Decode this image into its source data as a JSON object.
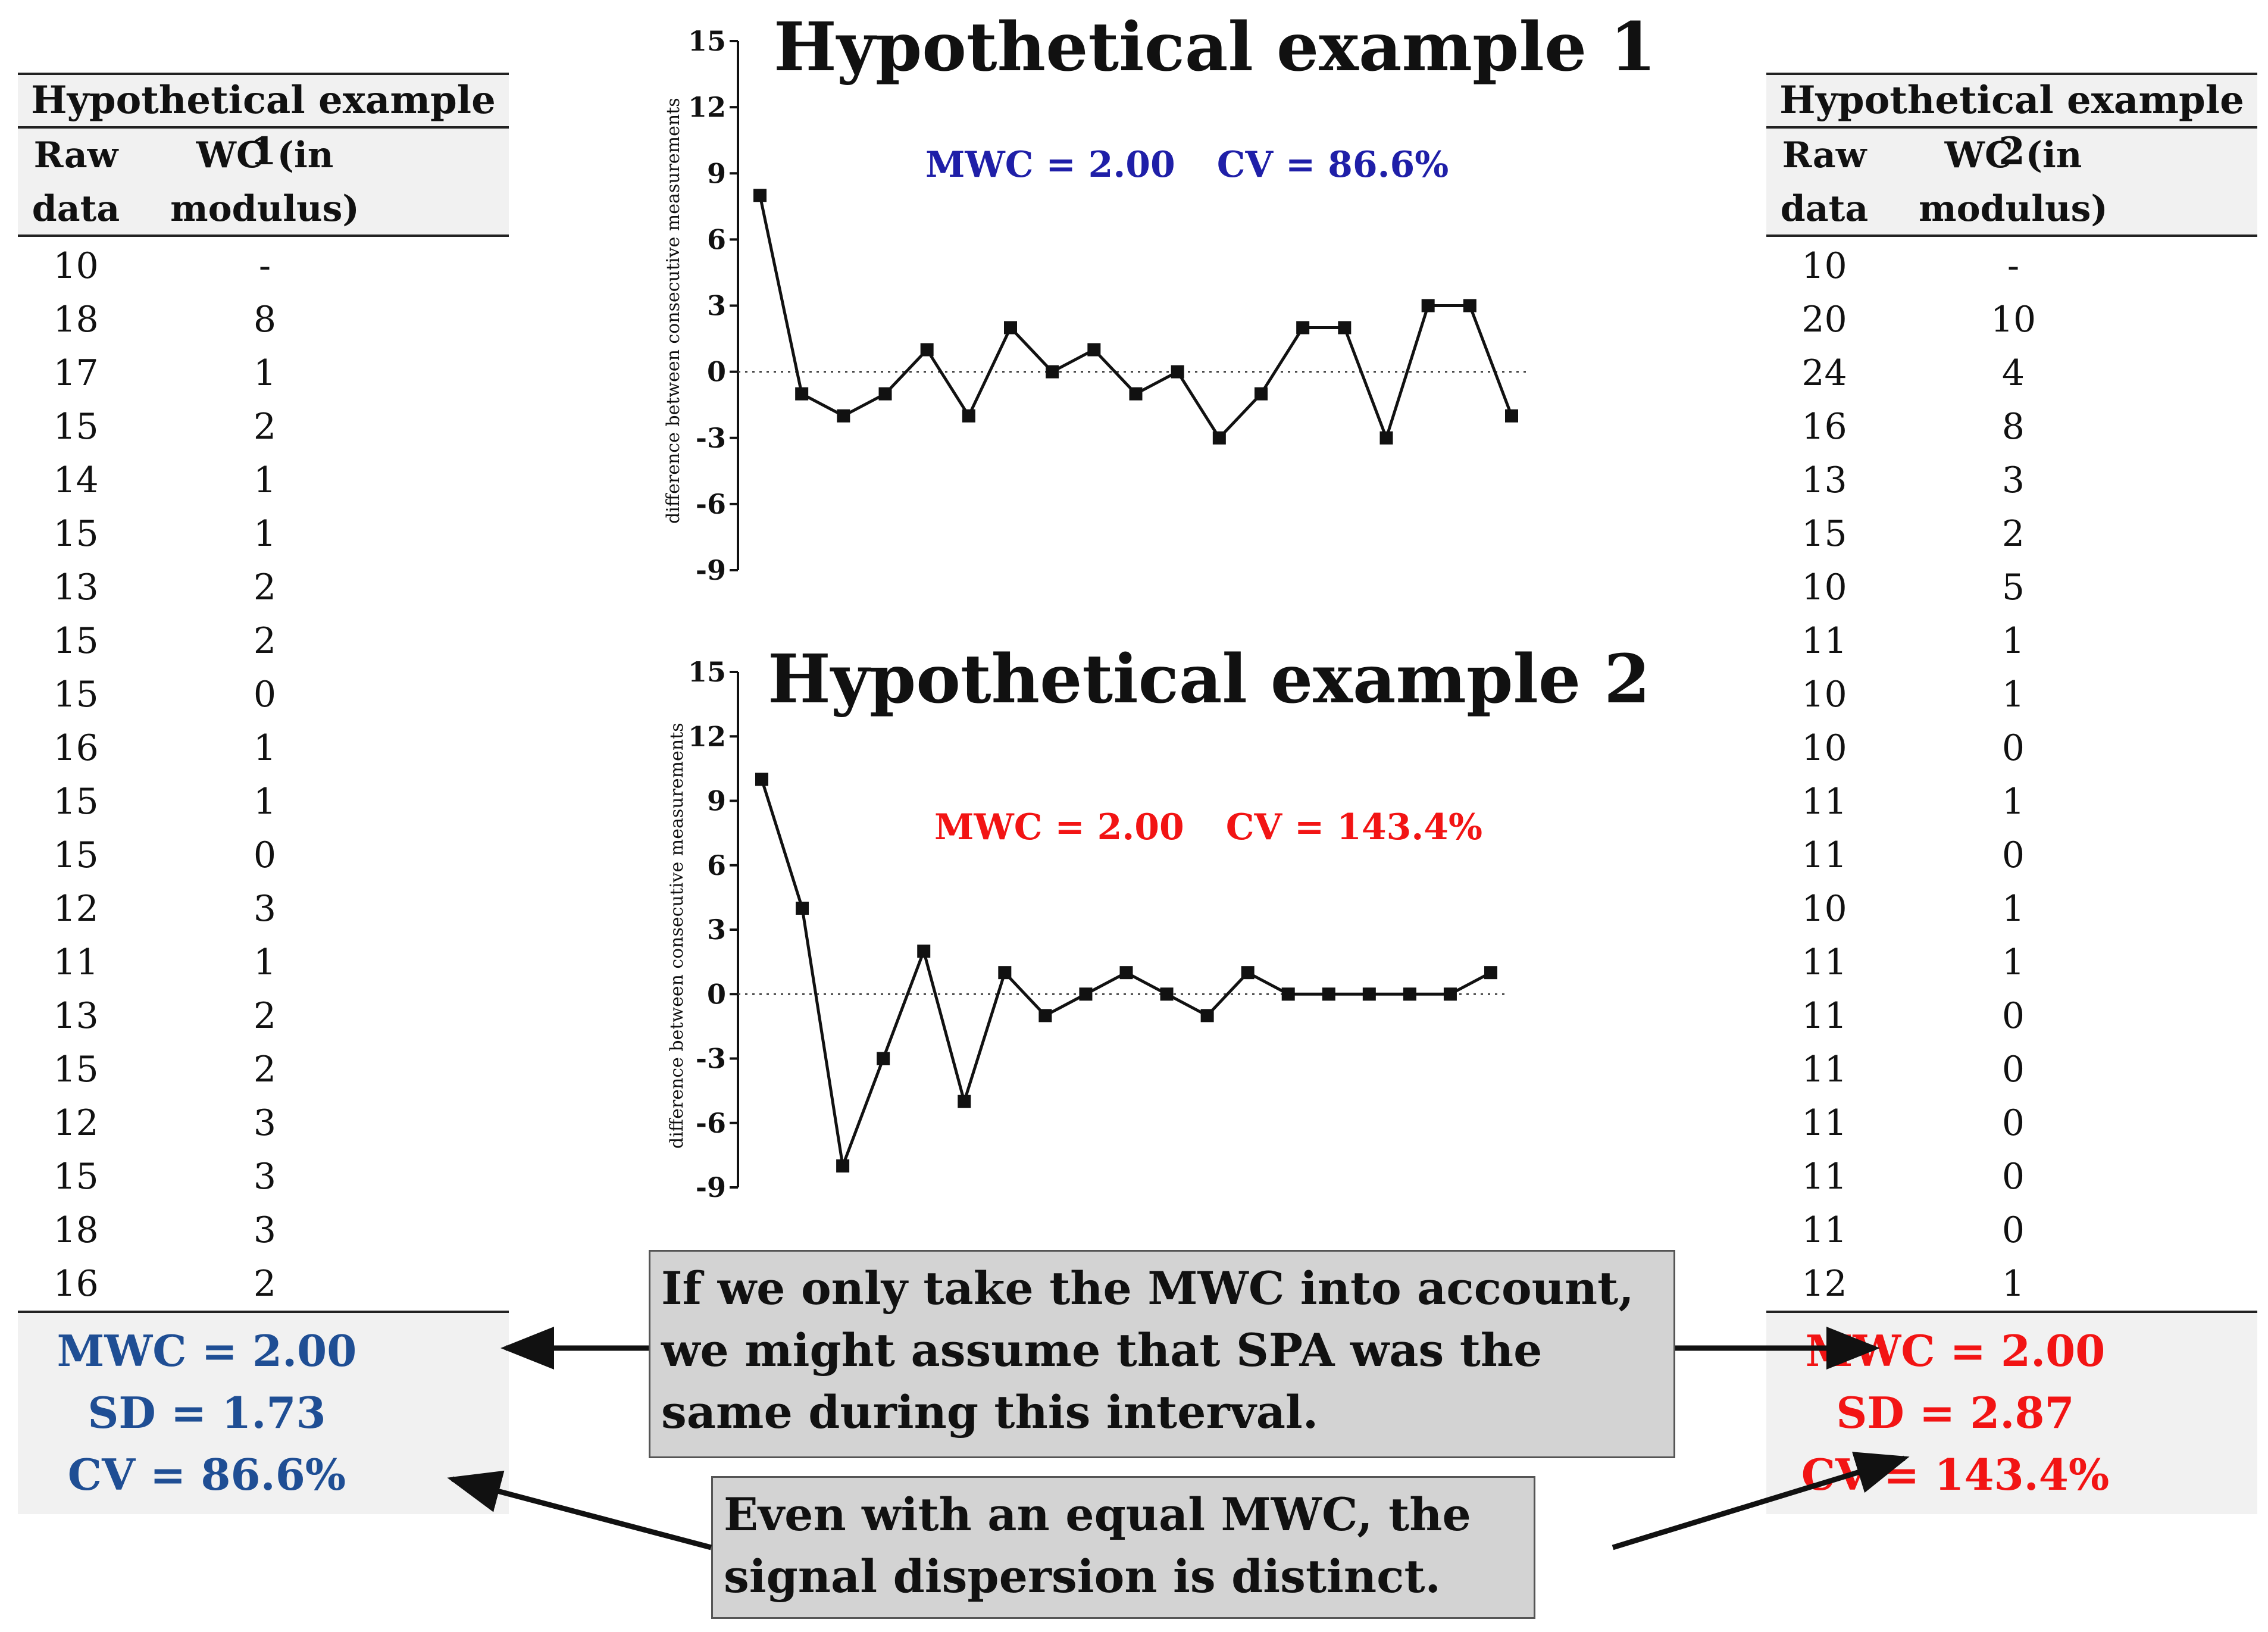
{
  "left_table": {
    "title": "Hypothetical example 1",
    "col_raw": "Raw data",
    "col_wc": "WC (in modulus)",
    "rows": [
      {
        "raw": "10",
        "wc": "-"
      },
      {
        "raw": "18",
        "wc": "8"
      },
      {
        "raw": "17",
        "wc": "1"
      },
      {
        "raw": "15",
        "wc": "2"
      },
      {
        "raw": "14",
        "wc": "1"
      },
      {
        "raw": "15",
        "wc": "1"
      },
      {
        "raw": "13",
        "wc": "2"
      },
      {
        "raw": "15",
        "wc": "2"
      },
      {
        "raw": "15",
        "wc": "0"
      },
      {
        "raw": "16",
        "wc": "1"
      },
      {
        "raw": "15",
        "wc": "1"
      },
      {
        "raw": "15",
        "wc": "0"
      },
      {
        "raw": "12",
        "wc": "3"
      },
      {
        "raw": "11",
        "wc": "1"
      },
      {
        "raw": "13",
        "wc": "2"
      },
      {
        "raw": "15",
        "wc": "2"
      },
      {
        "raw": "12",
        "wc": "3"
      },
      {
        "raw": "15",
        "wc": "3"
      },
      {
        "raw": "18",
        "wc": "3"
      },
      {
        "raw": "16",
        "wc": "2"
      }
    ],
    "mwc": "MWC = 2.00",
    "sd": "SD = 1.73",
    "cv": "CV = 86.6%",
    "color": "#1f4e94"
  },
  "right_table": {
    "title": "Hypothetical example 2",
    "col_raw": "Raw data",
    "col_wc": "WC (in modulus)",
    "rows": [
      {
        "raw": "10",
        "wc": "-"
      },
      {
        "raw": "20",
        "wc": "10"
      },
      {
        "raw": "24",
        "wc": "4"
      },
      {
        "raw": "16",
        "wc": "8"
      },
      {
        "raw": "13",
        "wc": "3"
      },
      {
        "raw": "15",
        "wc": "2"
      },
      {
        "raw": "10",
        "wc": "5"
      },
      {
        "raw": "11",
        "wc": "1"
      },
      {
        "raw": "10",
        "wc": "1"
      },
      {
        "raw": "10",
        "wc": "0"
      },
      {
        "raw": "11",
        "wc": "1"
      },
      {
        "raw": "11",
        "wc": "0"
      },
      {
        "raw": "10",
        "wc": "1"
      },
      {
        "raw": "11",
        "wc": "1"
      },
      {
        "raw": "11",
        "wc": "0"
      },
      {
        "raw": "11",
        "wc": "0"
      },
      {
        "raw": "11",
        "wc": "0"
      },
      {
        "raw": "11",
        "wc": "0"
      },
      {
        "raw": "11",
        "wc": "0"
      },
      {
        "raw": "12",
        "wc": "1"
      }
    ],
    "mwc": "MWC = 2.00",
    "sd": "SD = 2.87",
    "cv": "CV = 143.4%",
    "color": "#f21414"
  },
  "chart_data": [
    {
      "type": "line",
      "title": "Hypothetical example 1",
      "ylabel": "difference between consecutive measurements",
      "xlabel": "",
      "ylim": [
        -9,
        15
      ],
      "yticks": [
        15,
        12,
        9,
        6,
        3,
        0,
        -3,
        -6,
        -9
      ],
      "annotations": [
        "MWC = 2.00",
        "CV = 86.6%"
      ],
      "annotation_color": "#1f1fa8",
      "reference_line_y": 0,
      "values": [
        8,
        -1,
        -2,
        -1,
        1,
        -2,
        2,
        0,
        1,
        -1,
        0,
        -3,
        -1,
        2,
        2,
        -3,
        3,
        3,
        -2
      ]
    },
    {
      "type": "line",
      "title": "Hypothetical example 2",
      "ylabel": "difference between consecutive measurements",
      "xlabel": "",
      "ylim": [
        -9,
        15
      ],
      "yticks": [
        15,
        12,
        9,
        6,
        3,
        0,
        -3,
        -6,
        -9
      ],
      "annotations": [
        "MWC = 2.00",
        "CV = 143.4%"
      ],
      "annotation_color": "#f21414",
      "reference_line_y": 0,
      "values": [
        10,
        4,
        -8,
        -3,
        2,
        -5,
        1,
        -1,
        0,
        1,
        0,
        -1,
        1,
        0,
        0,
        0,
        0,
        0,
        1
      ]
    }
  ],
  "callouts": {
    "mwc_note": "If we only take the MWC into account, we might assume that SPA was the same during this interval.",
    "dispersion_note": "Even with an equal MWC, the signal dispersion is distinct."
  }
}
